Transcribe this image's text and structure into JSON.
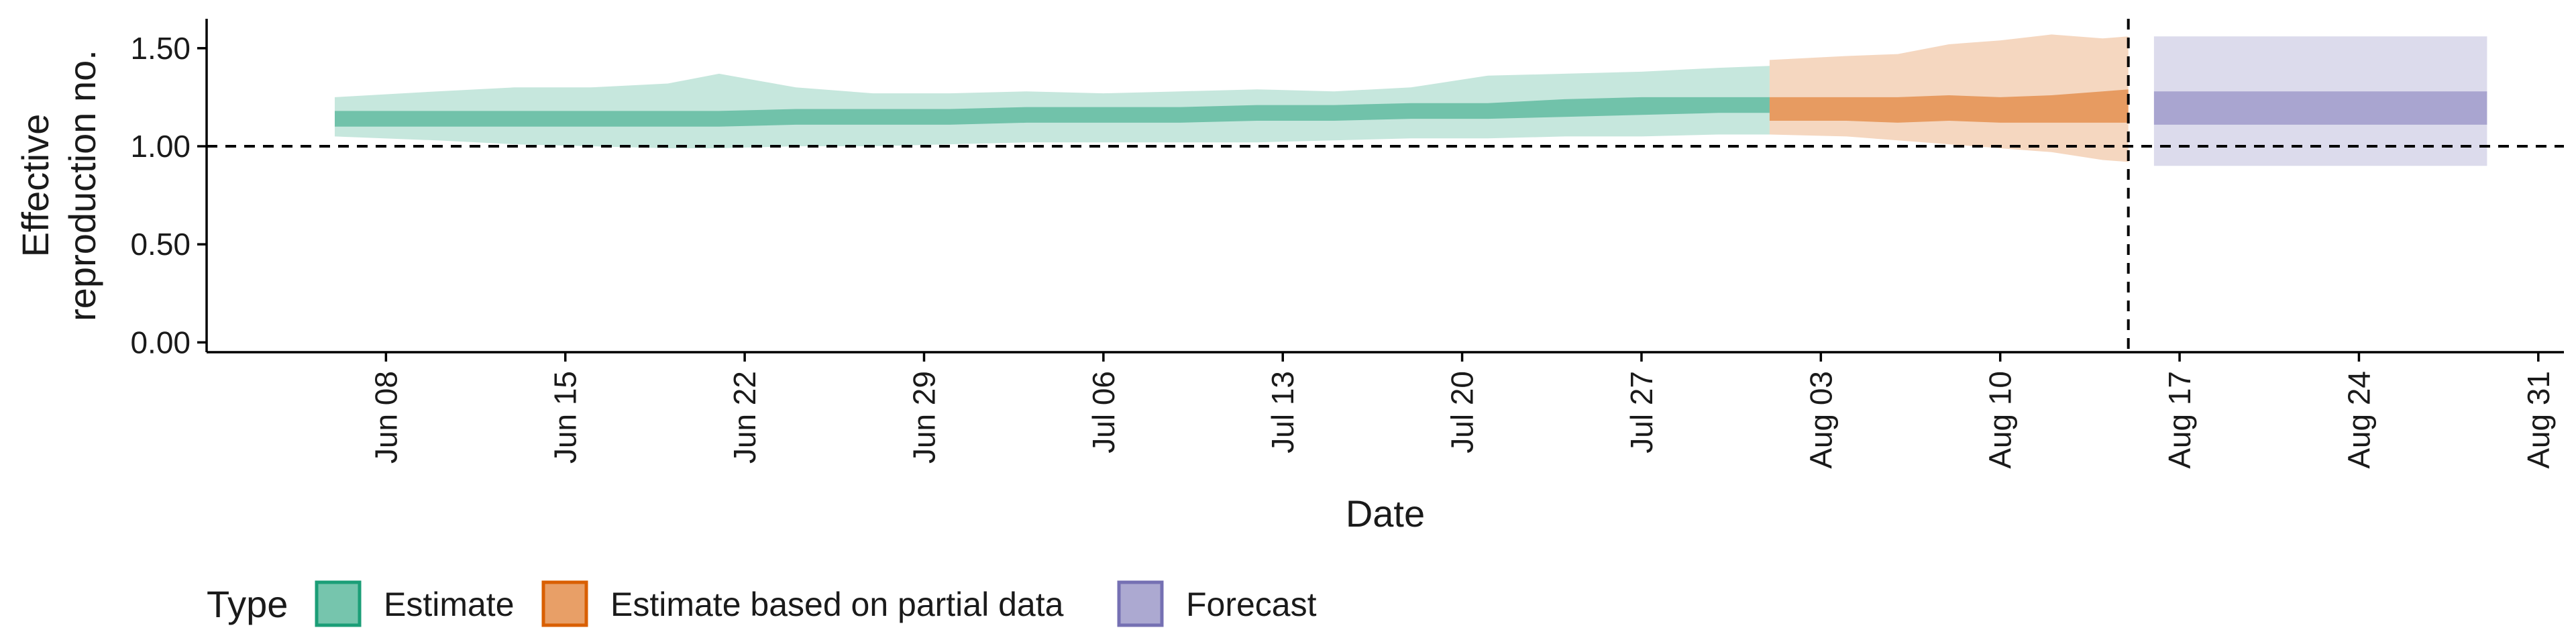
{
  "chart_data": {
    "type": "area",
    "xlabel": "Date",
    "ylabel": [
      "Effective",
      "reproduction no."
    ],
    "ylim": [
      -0.05,
      1.65
    ],
    "yticks": [
      0.0,
      0.5,
      1.0,
      1.5
    ],
    "ytick_labels": [
      "0.00",
      "0.50",
      "1.00",
      "1.50"
    ],
    "xlim": [
      "2020-06-01",
      "2020-09-01"
    ],
    "xticks": [
      "2020-06-08",
      "2020-06-15",
      "2020-06-22",
      "2020-06-29",
      "2020-07-06",
      "2020-07-13",
      "2020-07-20",
      "2020-07-27",
      "2020-08-03",
      "2020-08-10",
      "2020-08-17",
      "2020-08-24",
      "2020-08-31"
    ],
    "xtick_labels": [
      "Jun 08",
      "Jun 15",
      "Jun 22",
      "Jun 29",
      "Jul 06",
      "Jul 13",
      "Jul 20",
      "Jul 27",
      "Aug 03",
      "Aug 10",
      "Aug 17",
      "Aug 24",
      "Aug 31"
    ],
    "hline": 1.0,
    "vline": "2020-08-15",
    "grid": false,
    "legend_position": "bottom",
    "legend_title": "Type",
    "series": [
      {
        "name": "Estimate",
        "color": "#1b9e77",
        "x": [
          "2020-06-07",
          "2020-06-10",
          "2020-06-13",
          "2020-06-16",
          "2020-06-19",
          "2020-06-21",
          "2020-06-24",
          "2020-06-27",
          "2020-06-30",
          "2020-07-03",
          "2020-07-06",
          "2020-07-09",
          "2020-07-12",
          "2020-07-15",
          "2020-07-18",
          "2020-07-21",
          "2020-07-24",
          "2020-07-27",
          "2020-07-30",
          "2020-08-01"
        ],
        "lower90": [
          1.05,
          1.03,
          1.01,
          1.0,
          0.99,
          0.99,
          1.0,
          1.0,
          1.01,
          1.02,
          1.02,
          1.02,
          1.02,
          1.03,
          1.04,
          1.04,
          1.05,
          1.05,
          1.06,
          1.06
        ],
        "upper90": [
          1.25,
          1.28,
          1.3,
          1.3,
          1.32,
          1.37,
          1.3,
          1.27,
          1.27,
          1.28,
          1.27,
          1.28,
          1.29,
          1.28,
          1.3,
          1.36,
          1.37,
          1.38,
          1.4,
          1.41
        ],
        "lower50": [
          1.1,
          1.1,
          1.1,
          1.1,
          1.1,
          1.1,
          1.11,
          1.11,
          1.11,
          1.12,
          1.12,
          1.12,
          1.13,
          1.13,
          1.14,
          1.14,
          1.15,
          1.16,
          1.17,
          1.17
        ],
        "upper50": [
          1.18,
          1.18,
          1.18,
          1.18,
          1.18,
          1.18,
          1.19,
          1.19,
          1.19,
          1.2,
          1.2,
          1.2,
          1.21,
          1.21,
          1.22,
          1.22,
          1.24,
          1.25,
          1.25,
          1.25
        ]
      },
      {
        "name": "Estimate based on partial data",
        "color": "#d95f02",
        "x": [
          "2020-08-02",
          "2020-08-04",
          "2020-08-06",
          "2020-08-08",
          "2020-08-10",
          "2020-08-12",
          "2020-08-14",
          "2020-08-15"
        ],
        "lower90": [
          1.06,
          1.05,
          1.03,
          1.01,
          0.99,
          0.97,
          0.93,
          0.92
        ],
        "upper90": [
          1.44,
          1.46,
          1.47,
          1.52,
          1.54,
          1.57,
          1.55,
          1.56
        ],
        "lower50": [
          1.13,
          1.13,
          1.12,
          1.13,
          1.12,
          1.12,
          1.12,
          1.12
        ],
        "upper50": [
          1.25,
          1.25,
          1.25,
          1.26,
          1.25,
          1.26,
          1.28,
          1.29
        ]
      },
      {
        "name": "Forecast",
        "color": "#7570b3",
        "x": [
          "2020-08-16",
          "2020-08-29"
        ],
        "lower90": [
          0.9,
          0.9
        ],
        "upper90": [
          1.56,
          1.56
        ],
        "lower50": [
          1.11,
          1.11
        ],
        "upper50": [
          1.28,
          1.28
        ]
      }
    ]
  }
}
